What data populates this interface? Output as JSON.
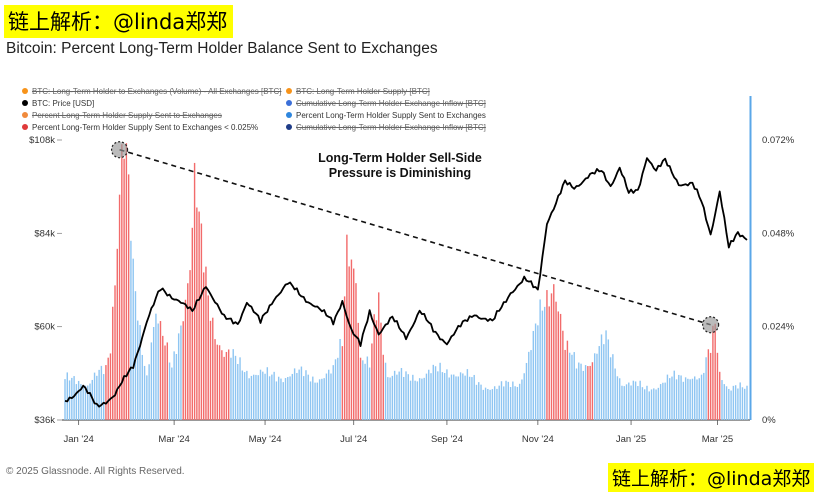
{
  "watermark_top": "链上解析：@linda郑郑",
  "watermark_bottom": "链上解析：@linda郑郑",
  "footer": "© 2025 Glassnode. All Rights Reserved.",
  "legend": [
    {
      "label": "BTC: Long-Term Holder to Exchanges (Volume) - All Exchanges [BTC]",
      "color": "#f7931a",
      "disabled": true
    },
    {
      "label": "BTC: Long-Term Holder Supply [BTC]",
      "color": "#f7931a",
      "disabled": true
    },
    {
      "label": "BTC: Price [USD]",
      "color": "#000000",
      "disabled": false
    },
    {
      "label": "Cumulative Long-Term Holder Exchange Inflow [BTC]",
      "color": "#3b6fd8",
      "disabled": true
    },
    {
      "label": "Percent Long-Term Holder Supply Sent to Exchanges",
      "color": "#f08a3c",
      "disabled": true
    },
    {
      "label": "Percent Long-Term Holder Supply Sent to Exchanges",
      "color": "#2e86de",
      "disabled": false
    },
    {
      "label": "Percent Long-Term Holder Supply Sent to Exchanges < 0.025%",
      "color": "#e03a3a",
      "disabled": false
    },
    {
      "label": "Cumulative Long-Term Holder Exchange Inflow [BTC]",
      "color": "#1f3c88",
      "disabled": true
    }
  ],
  "chart_data": {
    "type": "bar",
    "title": "Bitcoin: Percent Long-Term Holder Balance Sent to Exchanges",
    "annotation": [
      "Long-Term Holder Sell-Side",
      "Pressure is Diminishing"
    ],
    "x_ticks": [
      "Jan '24",
      "Mar '24",
      "May '24",
      "Jul '24",
      "Sep '24",
      "Nov '24",
      "Jan '25",
      "Mar '25"
    ],
    "x_tick_index": [
      6,
      48,
      88,
      127,
      168,
      208,
      249,
      287
    ],
    "y_left": {
      "ticks": [
        "$36k",
        "$60k",
        "$84k",
        "$108k"
      ],
      "values": [
        36000,
        60000,
        84000,
        108000
      ],
      "range": [
        36000,
        108000
      ]
    },
    "y_right": {
      "ticks": [
        "0%",
        "0.024%",
        "0.048%",
        "0.072%"
      ],
      "values": [
        0,
        0.024,
        0.048,
        0.072
      ],
      "range": [
        0,
        0.072
      ]
    },
    "percent_keypoints": [
      [
        0,
        0.01
      ],
      [
        5,
        0.011
      ],
      [
        10,
        0.009
      ],
      [
        14,
        0.011
      ],
      [
        18,
        0.013
      ],
      [
        20,
        0.02
      ],
      [
        23,
        0.05
      ],
      [
        25,
        0.072
      ],
      [
        27,
        0.066
      ],
      [
        30,
        0.035
      ],
      [
        33,
        0.022
      ],
      [
        36,
        0.012
      ],
      [
        38,
        0.022
      ],
      [
        40,
        0.028
      ],
      [
        43,
        0.02
      ],
      [
        47,
        0.013
      ],
      [
        52,
        0.03
      ],
      [
        55,
        0.04
      ],
      [
        57,
        0.058
      ],
      [
        60,
        0.043
      ],
      [
        63,
        0.032
      ],
      [
        66,
        0.024
      ],
      [
        70,
        0.017
      ],
      [
        80,
        0.013
      ],
      [
        90,
        0.011
      ],
      [
        100,
        0.012
      ],
      [
        110,
        0.011
      ],
      [
        118,
        0.012
      ],
      [
        122,
        0.02
      ],
      [
        124,
        0.048
      ],
      [
        126,
        0.046
      ],
      [
        128,
        0.038
      ],
      [
        130,
        0.015
      ],
      [
        134,
        0.013
      ],
      [
        136,
        0.024
      ],
      [
        138,
        0.033
      ],
      [
        140,
        0.02
      ],
      [
        142,
        0.012
      ],
      [
        150,
        0.011
      ],
      [
        160,
        0.012
      ],
      [
        170,
        0.013
      ],
      [
        180,
        0.01
      ],
      [
        190,
        0.008
      ],
      [
        200,
        0.01
      ],
      [
        206,
        0.02
      ],
      [
        212,
        0.032
      ],
      [
        215,
        0.038
      ],
      [
        218,
        0.027
      ],
      [
        220,
        0.018
      ],
      [
        225,
        0.014
      ],
      [
        232,
        0.016
      ],
      [
        238,
        0.02
      ],
      [
        245,
        0.01
      ],
      [
        255,
        0.008
      ],
      [
        265,
        0.01
      ],
      [
        275,
        0.012
      ],
      [
        280,
        0.01
      ],
      [
        284,
        0.018
      ],
      [
        286,
        0.026
      ],
      [
        288,
        0.013
      ],
      [
        292,
        0.008
      ],
      [
        300,
        0.008
      ]
    ],
    "red_threshold": 0.025,
    "red_bars": [
      [
        18,
        22
      ],
      [
        23,
        28
      ],
      [
        42,
        45
      ],
      [
        52,
        72
      ],
      [
        122,
        130
      ],
      [
        135,
        140
      ],
      [
        212,
        221
      ],
      [
        230,
        232
      ],
      [
        283,
        285
      ],
      [
        286,
        288
      ]
    ],
    "price_keypoints": [
      [
        0,
        41000
      ],
      [
        8,
        44500
      ],
      [
        14,
        39500
      ],
      [
        22,
        42500
      ],
      [
        30,
        50000
      ],
      [
        36,
        61500
      ],
      [
        42,
        69500
      ],
      [
        50,
        67000
      ],
      [
        56,
        63500
      ],
      [
        62,
        71000
      ],
      [
        70,
        62000
      ],
      [
        76,
        61000
      ],
      [
        80,
        66500
      ],
      [
        86,
        61000
      ],
      [
        92,
        67500
      ],
      [
        98,
        71000
      ],
      [
        104,
        68000
      ],
      [
        110,
        65500
      ],
      [
        118,
        61000
      ],
      [
        122,
        67000
      ],
      [
        126,
        59000
      ],
      [
        130,
        55000
      ],
      [
        134,
        64000
      ],
      [
        138,
        58500
      ],
      [
        144,
        62000
      ],
      [
        150,
        57500
      ],
      [
        156,
        64000
      ],
      [
        162,
        59000
      ],
      [
        168,
        56000
      ],
      [
        174,
        60000
      ],
      [
        180,
        63500
      ],
      [
        188,
        61000
      ],
      [
        196,
        69000
      ],
      [
        202,
        72000
      ],
      [
        208,
        69500
      ],
      [
        212,
        87000
      ],
      [
        216,
        91500
      ],
      [
        220,
        97000
      ],
      [
        224,
        96000
      ],
      [
        230,
        98500
      ],
      [
        236,
        100000
      ],
      [
        240,
        96500
      ],
      [
        244,
        101000
      ],
      [
        248,
        94000
      ],
      [
        252,
        95000
      ],
      [
        256,
        104000
      ],
      [
        260,
        100000
      ],
      [
        264,
        102500
      ],
      [
        270,
        97000
      ],
      [
        276,
        96500
      ],
      [
        280,
        92000
      ],
      [
        284,
        84000
      ],
      [
        288,
        95000
      ],
      [
        292,
        80000
      ],
      [
        296,
        84000
      ],
      [
        300,
        83000
      ]
    ],
    "n_points": 301,
    "trend_line": {
      "from_index": 24,
      "from_percent": 0.0695,
      "to_index": 284,
      "to_percent": 0.0245
    }
  }
}
